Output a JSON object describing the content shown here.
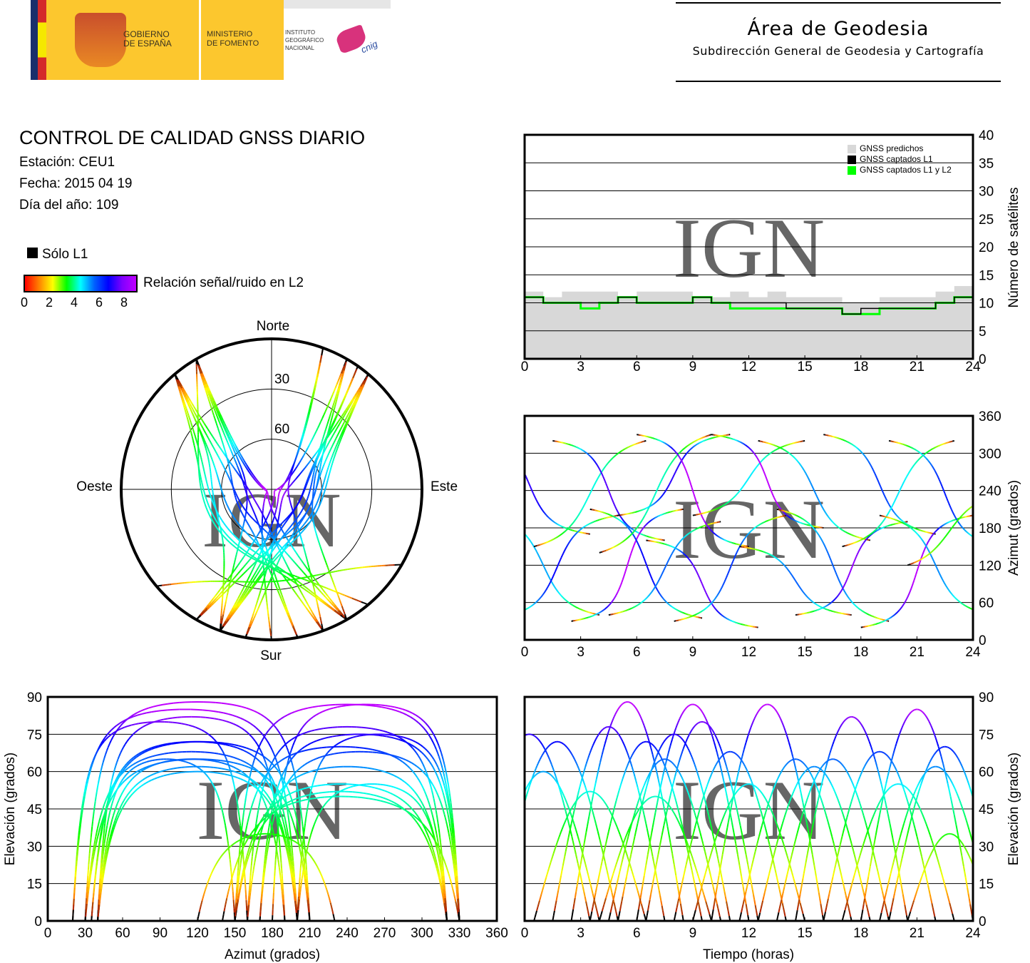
{
  "header": {
    "gov_line1": "GOBIERNO",
    "gov_line2": "DE ESPAÑA",
    "min_line1": "MINISTERIO",
    "min_line2": "DE FOMENTO",
    "ign_line1": "INSTITUTO",
    "ign_line2": "GEOGRÁFICO",
    "ign_line3": "NACIONAL",
    "cnig": "cnig",
    "area_title": "Área de Geodesia",
    "area_subtitle": "Subdirección General de Geodesia y Cartografía"
  },
  "info": {
    "title": "CONTROL DE CALIDAD GNSS DIARIO",
    "station": "Estación: CEU1",
    "date": "Fecha: 2015 04 19",
    "doy": "Día del año: 109",
    "l1_only": "Sólo L1",
    "snr_label": "Relación señal/ruido en L2",
    "snr_ticks": [
      "0",
      "2",
      "4",
      "6",
      "8"
    ]
  },
  "watermark": "IGN",
  "colors": {
    "predicted": "#d8d8d8",
    "l1": "#000000",
    "l1l2": "#00ff00",
    "snr_scale": [
      "#ff0000",
      "#ff8000",
      "#ffff00",
      "#00ff00",
      "#00ffff",
      "#0060ff",
      "#0000ff",
      "#8000ff",
      "#c000ff"
    ]
  },
  "chart_data": [
    {
      "type": "line",
      "id": "count",
      "ylabel": "Número de satélites",
      "ylim": [
        0,
        40
      ],
      "xlim": [
        0,
        24
      ],
      "xticks": [
        "0",
        "3",
        "6",
        "9",
        "12",
        "15",
        "18",
        "21",
        "24"
      ],
      "yticks": [
        "0",
        "5",
        "10",
        "15",
        "20",
        "25",
        "30",
        "35",
        "40"
      ],
      "legend_position": "top-right",
      "grid": true,
      "x": [
        0,
        1,
        2,
        3,
        4,
        5,
        6,
        7,
        8,
        9,
        10,
        11,
        12,
        13,
        14,
        15,
        16,
        17,
        18,
        19,
        20,
        21,
        22,
        23,
        24
      ],
      "series": [
        {
          "name": "GNSS predichos",
          "values": [
            12,
            11,
            12,
            12,
            12,
            11,
            12,
            12,
            12,
            11,
            11,
            12,
            11,
            12,
            11,
            11,
            11,
            10,
            10,
            11,
            11,
            11,
            12,
            13,
            13
          ]
        },
        {
          "name": "GNSS captados L1",
          "values": [
            11,
            10,
            10,
            10,
            10,
            11,
            10,
            10,
            10,
            11,
            10,
            10,
            10,
            10,
            9,
            9,
            9,
            8,
            9,
            9,
            9,
            9,
            10,
            11,
            11
          ]
        },
        {
          "name": "GNSS captados L1 y L2",
          "values": [
            11,
            10,
            10,
            9,
            10,
            11,
            10,
            10,
            10,
            11,
            10,
            9,
            9,
            9,
            9,
            9,
            9,
            8,
            8,
            9,
            9,
            9,
            10,
            11,
            11
          ]
        }
      ]
    },
    {
      "type": "scatter",
      "id": "azimuth_time",
      "ylabel": "Azimut (grados)",
      "ylim": [
        0,
        360
      ],
      "xlim": [
        0,
        24
      ],
      "xticks": [
        "0",
        "3",
        "6",
        "9",
        "12",
        "15",
        "18",
        "21",
        "24"
      ],
      "yticks": [
        "0",
        "60",
        "120",
        "180",
        "240",
        "300",
        "360"
      ],
      "grid": true
    },
    {
      "type": "scatter",
      "id": "polar",
      "labels": {
        "north": "Norte",
        "south": "Sur",
        "east": "Este",
        "west": "Oeste"
      },
      "rings": [
        "30",
        "60"
      ]
    },
    {
      "type": "scatter",
      "id": "elev_azimuth",
      "xlabel": "Azimut (grados)",
      "ylabel": "Elevación (grados)",
      "xlim": [
        0,
        360
      ],
      "ylim": [
        0,
        90
      ],
      "xticks": [
        "0",
        "30",
        "60",
        "90",
        "120",
        "150",
        "180",
        "210",
        "240",
        "270",
        "300",
        "330",
        "360"
      ],
      "yticks": [
        "0",
        "15",
        "30",
        "45",
        "60",
        "75",
        "90"
      ],
      "grid": true
    },
    {
      "type": "scatter",
      "id": "elev_time",
      "xlabel": "Tiempo (horas)",
      "ylabel": "Elevación (grados)",
      "xlim": [
        0,
        24
      ],
      "ylim": [
        0,
        90
      ],
      "xticks": [
        "0",
        "3",
        "6",
        "9",
        "12",
        "15",
        "18",
        "21",
        "24"
      ],
      "yticks": [
        "0",
        "15",
        "30",
        "45",
        "60",
        "75",
        "90"
      ],
      "grid": true
    },
    {
      "type": "passes",
      "id": "satellite_passes",
      "fields": [
        "rise_h",
        "set_h",
        "max_elev_deg",
        "rise_az_deg",
        "set_az_deg"
      ],
      "values": [
        [
          -3,
          3.5,
          75,
          330,
          170
        ],
        [
          -2,
          4,
          60,
          200,
          40
        ],
        [
          -1.5,
          5,
          72,
          35,
          200
        ],
        [
          0.5,
          6.5,
          52,
          150,
          320
        ],
        [
          1.5,
          7.5,
          78,
          320,
          160
        ],
        [
          2.5,
          8.5,
          88,
          30,
          210
        ],
        [
          3.5,
          9.5,
          72,
          210,
          35
        ],
        [
          4,
          10,
          50,
          140,
          330
        ],
        [
          4.5,
          10.5,
          65,
          40,
          190
        ],
        [
          5,
          11,
          75,
          200,
          330
        ],
        [
          6,
          12,
          87,
          330,
          150
        ],
        [
          6.5,
          12.5,
          80,
          160,
          20
        ],
        [
          8,
          14,
          68,
          30,
          200
        ],
        [
          9,
          15,
          55,
          200,
          320
        ],
        [
          10,
          16,
          87,
          330,
          180
        ],
        [
          11.5,
          17.5,
          65,
          150,
          40
        ],
        [
          12.5,
          18.5,
          62,
          320,
          160
        ],
        [
          13.5,
          19.5,
          65,
          210,
          30
        ],
        [
          14.5,
          20.5,
          82,
          40,
          190
        ],
        [
          16,
          22,
          68,
          330,
          170
        ],
        [
          17,
          23,
          55,
          150,
          320
        ],
        [
          18,
          24,
          85,
          20,
          200
        ],
        [
          19,
          25,
          62,
          200,
          40
        ],
        [
          19.5,
          25.5,
          70,
          320,
          150
        ],
        [
          20.5,
          25,
          35,
          120,
          230
        ]
      ]
    }
  ]
}
